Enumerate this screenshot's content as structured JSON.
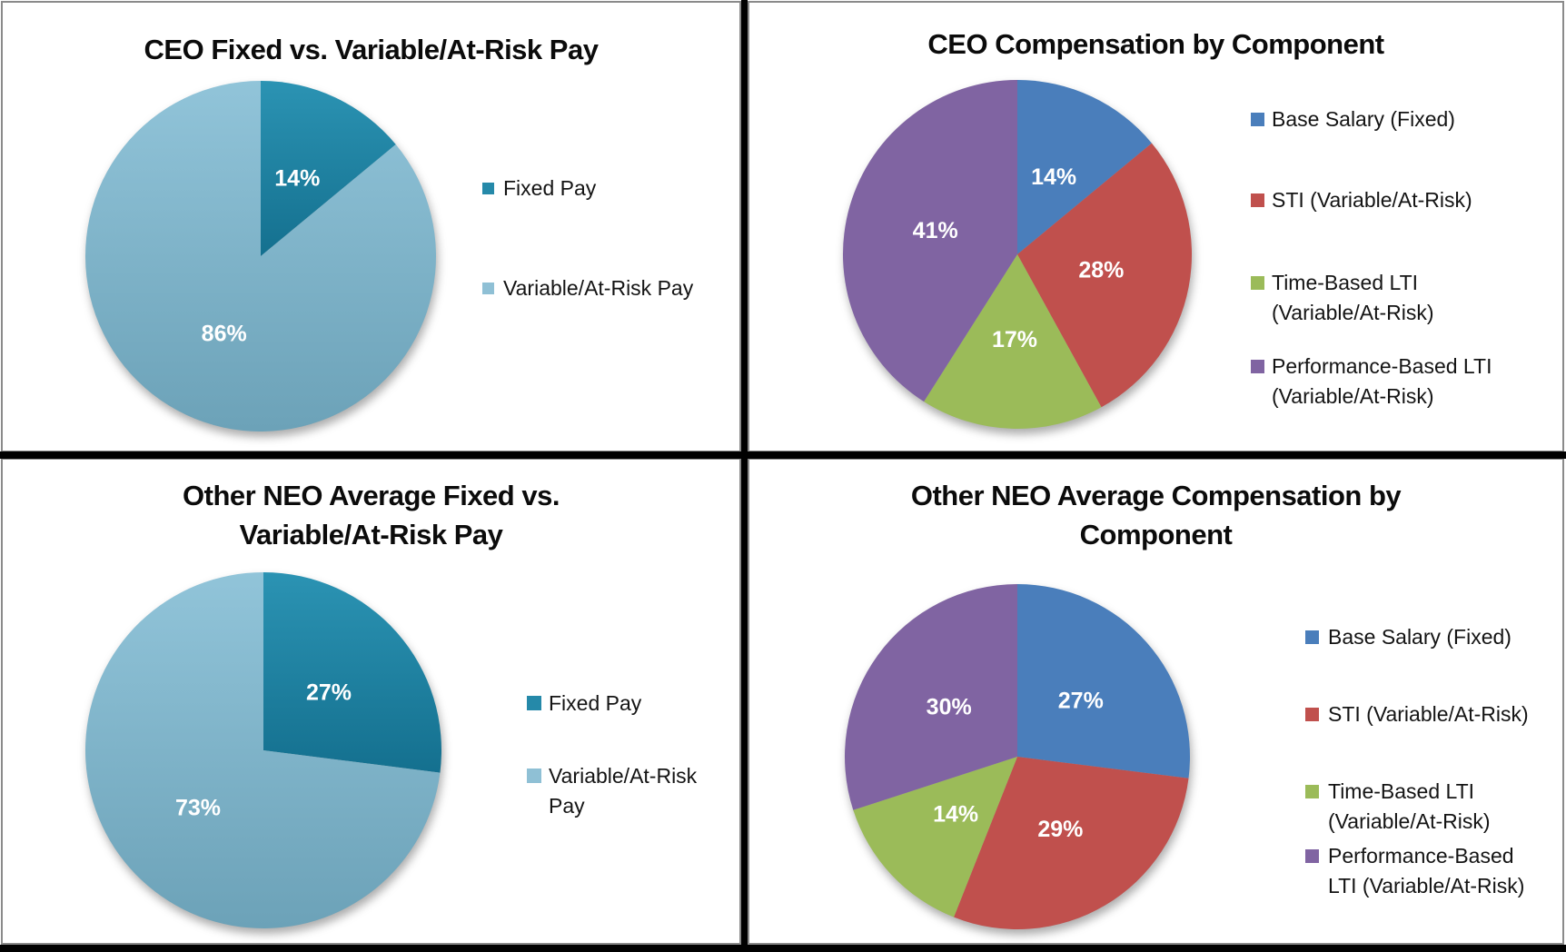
{
  "figure": {
    "description": "Four pie charts comparing fixed versus variable/at-risk executive pay",
    "grid": "2x2",
    "divider_color": "#000000",
    "border_color": "#8a8a8a",
    "background": "#ffffff"
  },
  "chart_data": [
    {
      "type": "pie",
      "title": "CEO Fixed vs. Variable/At-Risk Pay",
      "categories": [
        "Fixed Pay",
        "Variable/At-Risk Pay"
      ],
      "values": [
        14,
        86
      ],
      "labels": [
        "14%",
        "86%"
      ],
      "label_color": "#ffffff",
      "legend_position": "right",
      "colors": [
        {
          "top": "#2B93B3",
          "bottom": "#14708F"
        },
        {
          "top": "#91C4D9",
          "bottom": "#6CA2B8"
        }
      ]
    },
    {
      "type": "pie",
      "title": "CEO Compensation by Component",
      "categories": [
        "Base Salary (Fixed)",
        "STI (Variable/At-Risk)",
        "Time-Based LTI (Variable/At-Risk)",
        "Performance-Based LTI (Variable/At-Risk)"
      ],
      "values": [
        14,
        28,
        17,
        41
      ],
      "labels": [
        "14%",
        "28%",
        "17%",
        "41%"
      ],
      "label_color": "#ffffff",
      "legend_position": "right",
      "colors": [
        "#4A7EBB",
        "#C0504D",
        "#9BBB59",
        "#8064A2"
      ]
    },
    {
      "type": "pie",
      "title": "Other NEO Average Fixed vs. Variable/At-Risk Pay",
      "categories": [
        "Fixed Pay",
        "Variable/At-Risk Pay"
      ],
      "values": [
        27,
        73
      ],
      "labels": [
        "27%",
        "73%"
      ],
      "label_color": "#ffffff",
      "legend_position": "right",
      "colors": [
        {
          "top": "#2B93B3",
          "bottom": "#14708F"
        },
        {
          "top": "#91C4D9",
          "bottom": "#6CA2B8"
        }
      ]
    },
    {
      "type": "pie",
      "title": "Other NEO Average Compensation by Component",
      "categories": [
        "Base Salary (Fixed)",
        "STI (Variable/At-Risk)",
        "Time-Based LTI (Variable/At-Risk)",
        "Performance-Based LTI (Variable/At-Risk)"
      ],
      "values": [
        27,
        29,
        14,
        30
      ],
      "labels": [
        "27%",
        "29%",
        "14%",
        "30%"
      ],
      "label_color": "#ffffff",
      "legend_position": "right",
      "colors": [
        "#4A7EBB",
        "#C0504D",
        "#9BBB59",
        "#8064A2"
      ]
    }
  ],
  "panels": [
    {
      "title_lines": [
        "CEO Fixed vs. Variable/At-Risk Pay"
      ],
      "legend": [
        {
          "lines": [
            "Fixed Pay"
          ],
          "color": "#2589A9"
        },
        {
          "lines": [
            "Variable/At-Risk Pay"
          ],
          "color": "#8FC0D5"
        }
      ]
    },
    {
      "title_lines": [
        "CEO Compensation by Component"
      ],
      "legend": [
        {
          "lines": [
            "Base Salary (Fixed)"
          ],
          "color": "#4A7EBB"
        },
        {
          "lines": [
            "STI (Variable/At-Risk)"
          ],
          "color": "#C0504D"
        },
        {
          "lines": [
            "Time-Based LTI",
            "(Variable/At-Risk)"
          ],
          "color": "#9BBB59"
        },
        {
          "lines": [
            "Performance-Based LTI",
            "(Variable/At-Risk)"
          ],
          "color": "#8064A2"
        }
      ]
    },
    {
      "title_lines": [
        "Other NEO Average Fixed vs.",
        "Variable/At-Risk Pay"
      ],
      "legend": [
        {
          "lines": [
            "Fixed Pay"
          ],
          "color": "#2589A9"
        },
        {
          "lines": [
            "Variable/At-Risk",
            "Pay"
          ],
          "color": "#8FC0D5"
        }
      ]
    },
    {
      "title_lines": [
        "Other NEO Average Compensation by",
        "Component"
      ],
      "legend": [
        {
          "lines": [
            "Base Salary (Fixed)"
          ],
          "color": "#4A7EBB"
        },
        {
          "lines": [
            "STI (Variable/At-Risk)"
          ],
          "color": "#C0504D"
        },
        {
          "lines": [
            "Time-Based LTI",
            "(Variable/At-Risk)"
          ],
          "color": "#9BBB59"
        },
        {
          "lines": [
            "Performance-Based",
            "LTI (Variable/At-Risk)"
          ],
          "color": "#8064A2"
        }
      ]
    }
  ]
}
